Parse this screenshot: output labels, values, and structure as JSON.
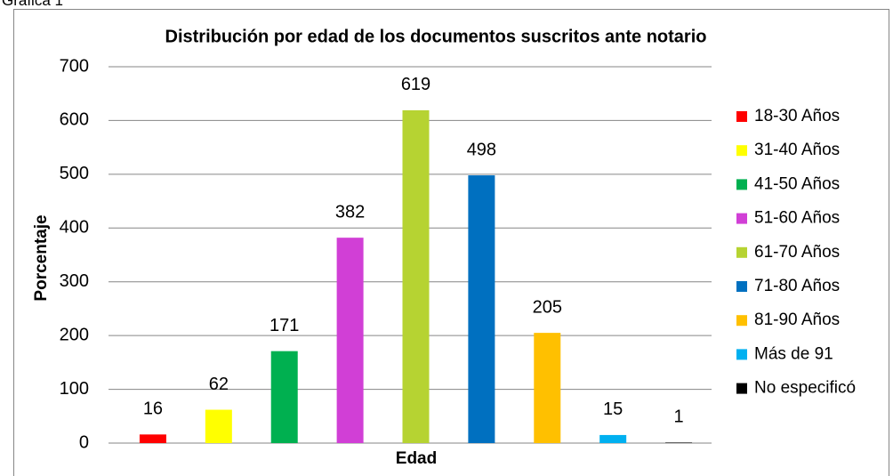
{
  "caption": "Gráfica 1",
  "chart_data": {
    "type": "bar",
    "title": "Distribución por edad de los documentos suscritos ante notario",
    "y_label": "Porcentaje",
    "x_label": "Edad",
    "categories": [
      "18-30 Años",
      "31-40 Años",
      "41-50 Años",
      "51-60 Años",
      "61-70 Años",
      "71-80 Años",
      "81-90 Años",
      "Más de 91",
      "No especificó"
    ],
    "values": [
      16,
      62,
      171,
      382,
      619,
      498,
      205,
      15,
      1
    ],
    "colors": [
      "#ff0000",
      "#ffff00",
      "#00b050",
      "#d13fd6",
      "#b6d332",
      "#0070c0",
      "#ffc000",
      "#00b0f0",
      "#000000"
    ],
    "ylim": [
      0,
      700
    ],
    "yticks": [
      0,
      100,
      200,
      300,
      400,
      500,
      600,
      700
    ],
    "grid": true,
    "legend": "right"
  }
}
